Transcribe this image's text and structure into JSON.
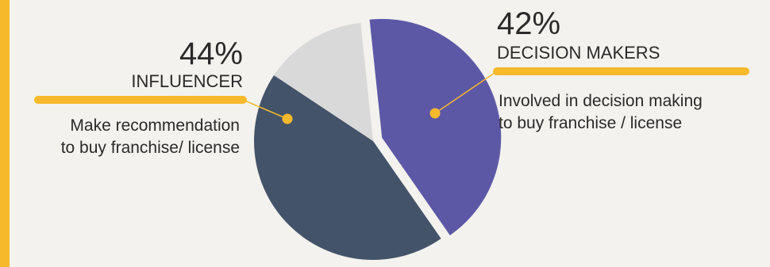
{
  "colors": {
    "accent": "#f6b92b",
    "decision_makers": "#5d58a6",
    "influencer": "#435369",
    "other": "#d9d9d9",
    "background": "#f3f2ee"
  },
  "chart_data": {
    "type": "pie",
    "title": "",
    "slices": [
      {
        "label": "DECISION MAKERS",
        "value": 42,
        "color": "#5d58a6"
      },
      {
        "label": "INFLUENCER",
        "value": 44,
        "color": "#435369"
      },
      {
        "label": "",
        "value": 14,
        "color": "#d9d9d9"
      }
    ],
    "annotations": {
      "influencer": {
        "percent": "44%",
        "label": "INFLUENCER",
        "desc_line1": "Make recommendation",
        "desc_line2": "to buy franchise/ license"
      },
      "decision_makers": {
        "percent": "42%",
        "label": "DECISION MAKERS",
        "desc_line1": "Involved in decision making",
        "desc_line2": "to buy franchise / license"
      }
    }
  }
}
